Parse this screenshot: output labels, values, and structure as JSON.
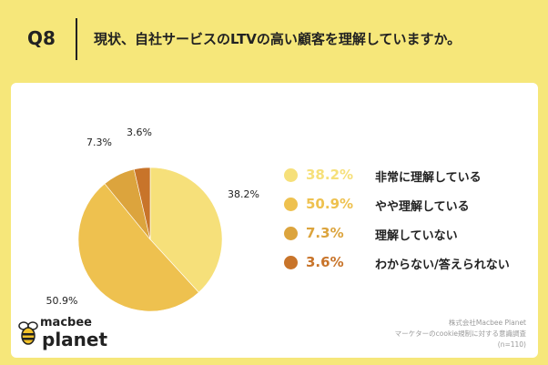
{
  "header": {
    "question_number": "Q8",
    "question_text": "現状、自社サービスのLTVの高い顧客を理解していますか。"
  },
  "chart_data": {
    "type": "pie",
    "categories": [
      "非常に理解している",
      "やや理解している",
      "理解していない",
      "わからない/答えられない"
    ],
    "values": [
      38.2,
      50.9,
      7.3,
      3.6
    ],
    "value_labels": [
      "38.2%",
      "50.9%",
      "7.3%",
      "3.6%"
    ],
    "colors": [
      "#f6e07a",
      "#eec14f",
      "#dca43d",
      "#c8742a"
    ],
    "start_angle_deg": 0,
    "direction": "clockwise",
    "legend_position": "right"
  },
  "logo": {
    "top_text": "macbee",
    "bottom_text": "planet"
  },
  "source": {
    "line1": "株式会社Macbee Planet",
    "line2": "マーケターのcookie規制に対する意識調査",
    "line3": "(n=110)"
  }
}
